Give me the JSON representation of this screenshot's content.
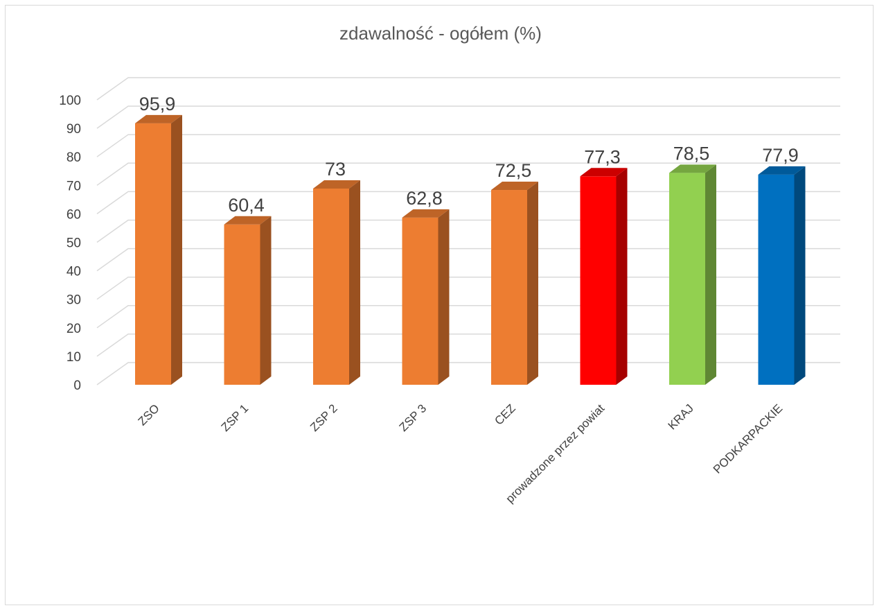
{
  "chart_data": {
    "type": "bar",
    "title": "zdawalność - ogółem (%)",
    "categories": [
      "ZSO",
      "ZSP 1",
      "ZSP 2",
      "ZSP 3",
      "CEZ",
      "prowadzone przez powiat",
      "KRAJ",
      "PODKARPACKIE"
    ],
    "values": [
      95.9,
      60.4,
      73,
      62.8,
      72.5,
      77.3,
      78.5,
      77.9
    ],
    "data_labels": [
      "95,9",
      "60,4",
      "73",
      "62,8",
      "72,5",
      "77,3",
      "78,5",
      "77,9"
    ],
    "y_ticks": [
      "0",
      "10",
      "20",
      "30",
      "40",
      "50",
      "60",
      "70",
      "80",
      "90",
      "100"
    ],
    "ylim": [
      0,
      100
    ],
    "grid": true,
    "legend": "none",
    "bar_colors": [
      "#ED7D31",
      "#ED7D31",
      "#ED7D31",
      "#ED7D31",
      "#ED7D31",
      "#FF0000",
      "#92D050",
      "#0070C0"
    ],
    "style": "3d-column"
  }
}
